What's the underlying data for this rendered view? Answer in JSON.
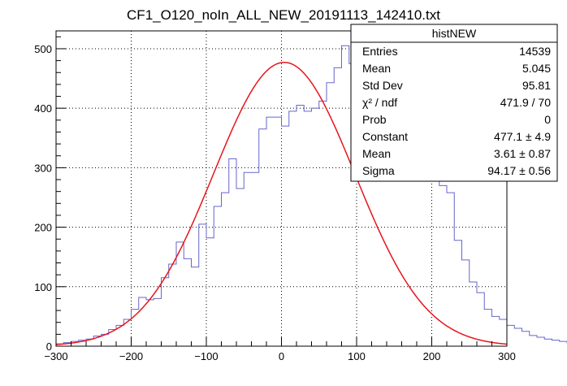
{
  "chart_data": {
    "type": "histogram",
    "title": "CF1_O120_noIn_ALL_NEW_20191113_142410.txt",
    "xlim": [
      -300,
      300
    ],
    "ylim": [
      0,
      530
    ],
    "x_ticks": [
      -300,
      -200,
      -100,
      0,
      100,
      200,
      300
    ],
    "x_tick_labels": [
      "−300",
      "−200",
      "−100",
      "0",
      "100",
      "200",
      "300"
    ],
    "y_ticks": [
      0,
      100,
      200,
      300,
      400,
      500
    ],
    "y_tick_labels": [
      "0",
      "100",
      "200",
      "300",
      "400",
      "500"
    ],
    "grid": true,
    "histogram_color": "#6666cc",
    "fit_color": "#e8141c",
    "bin_edges_start": -300,
    "bin_width": 10,
    "counts": [
      4,
      6,
      8,
      10,
      12,
      17,
      20,
      28,
      35,
      45,
      62,
      82,
      78,
      80,
      115,
      138,
      175,
      147,
      133,
      205,
      182,
      235,
      258,
      315,
      265,
      292,
      292,
      365,
      385,
      385,
      370,
      395,
      405,
      395,
      400,
      412,
      443,
      468,
      505,
      475,
      480,
      470,
      465,
      453,
      430,
      413,
      408,
      365,
      355,
      315,
      295,
      270,
      258,
      178,
      145,
      108,
      90,
      62,
      50,
      45,
      35,
      30,
      25,
      18,
      15,
      12,
      10,
      8,
      6,
      4
    ],
    "fit": {
      "function": "gaus",
      "constant": 477.1,
      "mean": 3.61,
      "sigma": 94.17
    }
  },
  "stats_box": {
    "title": "histNEW",
    "rows": [
      {
        "label": "Entries",
        "value": "14539"
      },
      {
        "label": "Mean",
        "value": "5.045"
      },
      {
        "label": "Std Dev",
        "value": "95.81"
      },
      {
        "label": "χ² / ndf",
        "value": "471.9 / 70"
      },
      {
        "label": "Prob",
        "value": "0"
      },
      {
        "label": "Constant",
        "value": "477.1 ± 4.9"
      },
      {
        "label": "Mean",
        "value": "3.61 ± 0.87"
      },
      {
        "label": "Sigma",
        "value": "94.17 ± 0.56"
      }
    ]
  }
}
